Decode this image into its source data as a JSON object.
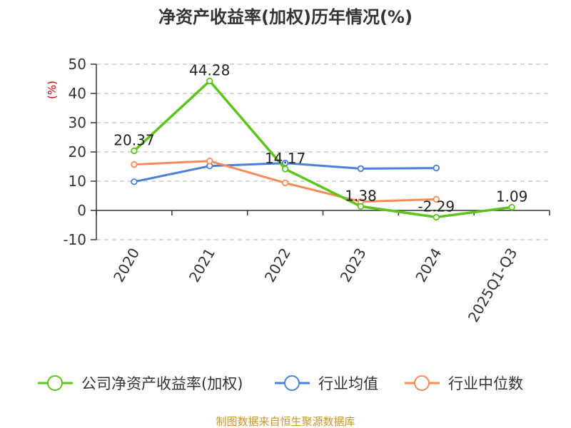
{
  "title": "净资产收益率(加权)历年情况(%)",
  "y_unit": "(%)",
  "footer": "制图数据来自恒生聚源数据库",
  "colors": {
    "company": "#5cc41b",
    "industry_avg": "#4a7fdb",
    "industry_median": "#f98b5a",
    "grid": "#cccccc",
    "axis": "#333333",
    "footer": "#c8962e"
  },
  "chart_data": {
    "type": "line",
    "title": "净资产收益率(加权)历年情况(%)",
    "ylabel": "(%)",
    "xlabel": "",
    "categories": [
      "2020",
      "2021",
      "2022",
      "2023",
      "2024",
      "2025Q1-Q3"
    ],
    "ylim": [
      -10,
      50
    ],
    "yticks": [
      50,
      40,
      30,
      20,
      10,
      0,
      -10
    ],
    "grid": true,
    "legend_position": "bottom",
    "series": [
      {
        "name": "公司净资产收益率(加权)",
        "values": [
          20.37,
          44.28,
          14.17,
          1.38,
          -2.29,
          1.09
        ],
        "labels": [
          "20.37",
          "44.28",
          "14.17",
          "1.38",
          "-2.29",
          "1.09"
        ]
      },
      {
        "name": "行业均值",
        "values": [
          9.8,
          15.2,
          16.2,
          14.3,
          14.5,
          null
        ]
      },
      {
        "name": "行业中位数",
        "values": [
          15.7,
          16.9,
          9.4,
          3.0,
          3.8,
          null
        ]
      }
    ]
  }
}
